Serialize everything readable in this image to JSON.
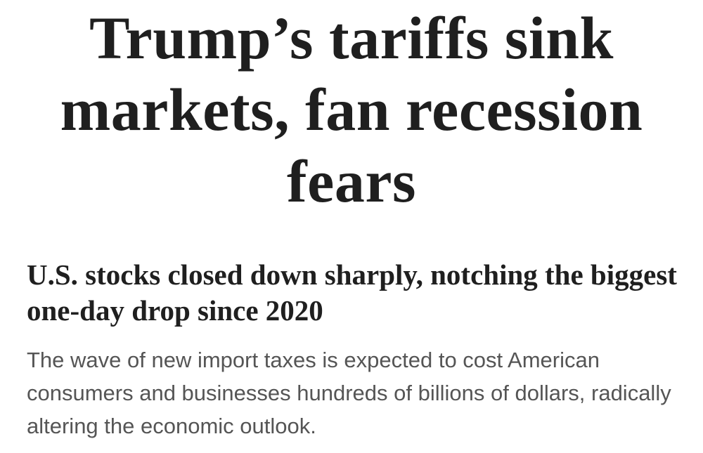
{
  "article": {
    "headline": "Trump’s tariffs sink markets, fan recession fears",
    "subheadline": "U.S. stocks closed down sharply, notching the biggest one-day drop since 2020",
    "dek": "The wave of new import taxes is expected to cost American consumers and businesses hundreds of billions of dollars, radically altering the economic outlook."
  }
}
